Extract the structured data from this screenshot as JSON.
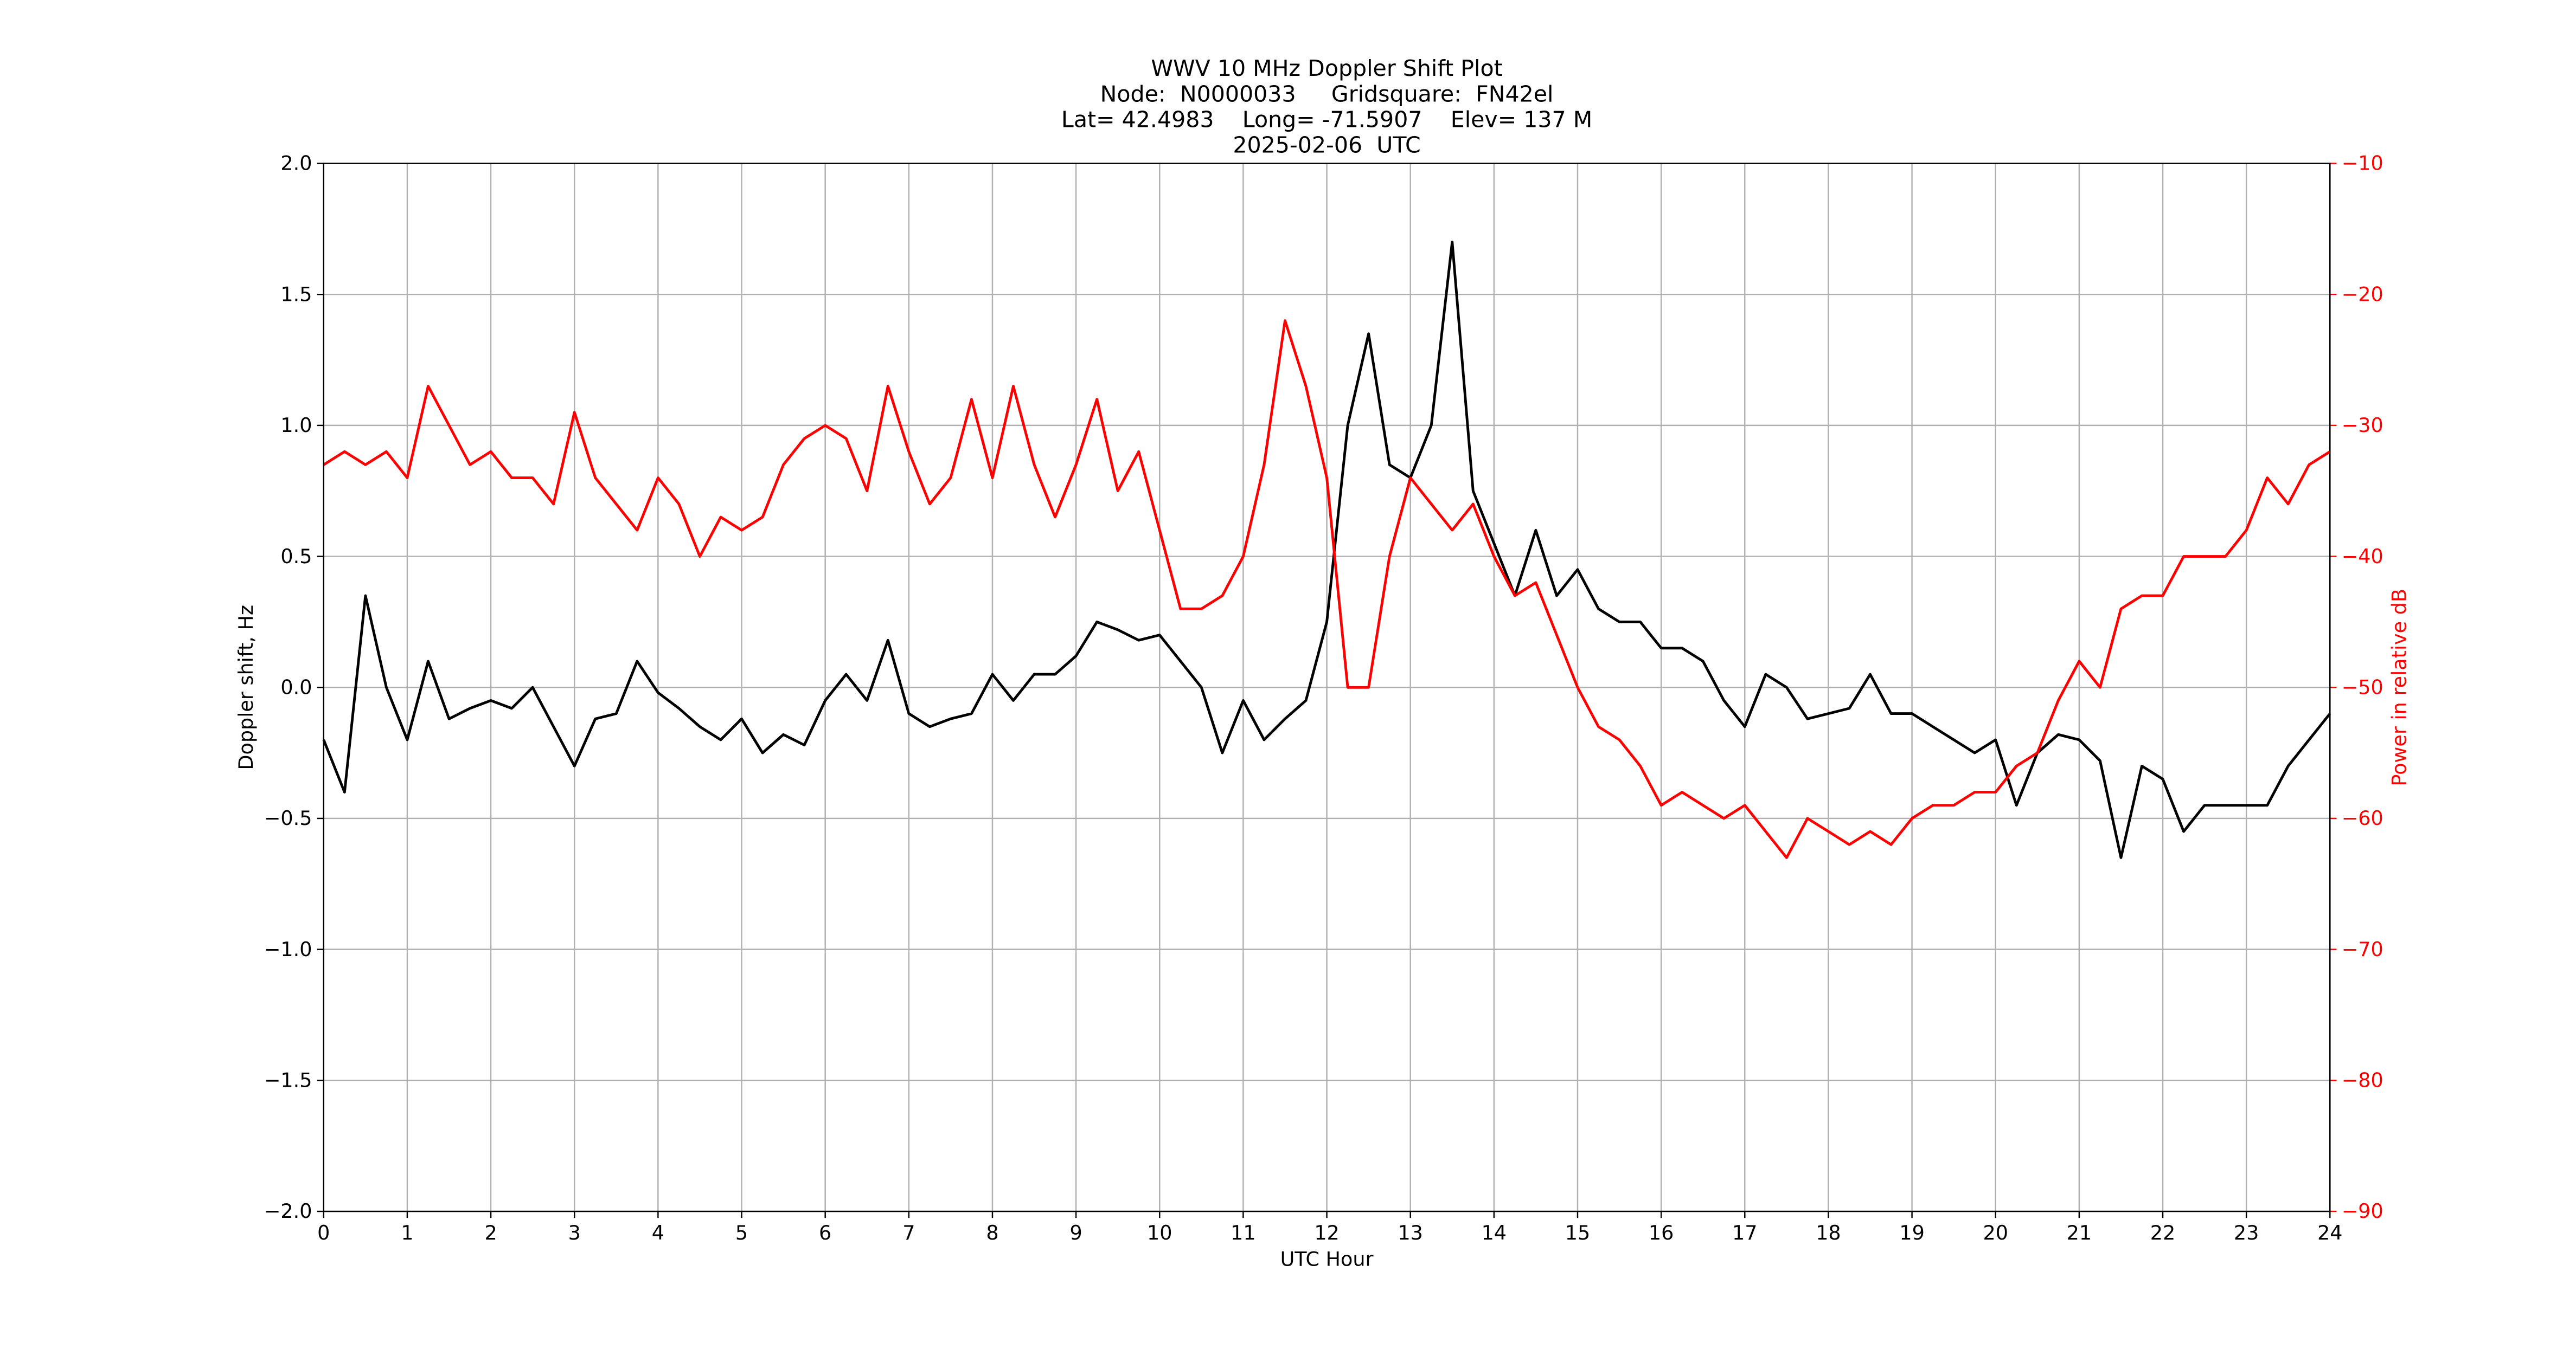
{
  "chart_data": {
    "type": "line",
    "title": [
      "WWV 10 MHz Doppler Shift Plot",
      "Node:  N0000033     Gridsquare:  FN42el",
      "Lat= 42.4983    Long= -71.5907    Elev= 137 M",
      "2025-02-06  UTC"
    ],
    "xlabel": "UTC Hour",
    "ylabel": "Doppler shift, Hz",
    "y2label": "Power in relative dB",
    "x": [
      0,
      0.25,
      0.5,
      0.75,
      1,
      1.25,
      1.5,
      1.75,
      2,
      2.25,
      2.5,
      2.75,
      3,
      3.25,
      3.5,
      3.75,
      4,
      4.25,
      4.5,
      4.75,
      5,
      5.25,
      5.5,
      5.75,
      6,
      6.25,
      6.5,
      6.75,
      7,
      7.25,
      7.5,
      7.75,
      8,
      8.25,
      8.5,
      8.75,
      9,
      9.25,
      9.5,
      9.75,
      10,
      10.25,
      10.5,
      10.75,
      11,
      11.25,
      11.5,
      11.75,
      12,
      12.25,
      12.5,
      12.75,
      13,
      13.25,
      13.5,
      13.75,
      14,
      14.25,
      14.5,
      14.75,
      15,
      15.25,
      15.5,
      15.75,
      16,
      16.25,
      16.5,
      16.75,
      17,
      17.25,
      17.5,
      17.75,
      18,
      18.25,
      18.5,
      18.75,
      19,
      19.25,
      19.5,
      19.75,
      20,
      20.25,
      20.5,
      20.75,
      21,
      21.25,
      21.5,
      21.75,
      22,
      22.25,
      22.5,
      22.75,
      23,
      23.25,
      23.5,
      23.75,
      24
    ],
    "series": [
      {
        "name": "Doppler shift",
        "color": "#000000",
        "axis": "y",
        "values": [
          -0.2,
          -0.4,
          0.35,
          0.0,
          -0.2,
          0.1,
          -0.12,
          -0.08,
          -0.05,
          -0.08,
          0.0,
          -0.15,
          -0.3,
          -0.12,
          -0.1,
          0.1,
          -0.02,
          -0.08,
          -0.15,
          -0.2,
          -0.12,
          -0.25,
          -0.18,
          -0.22,
          -0.05,
          0.05,
          -0.05,
          0.18,
          -0.1,
          -0.15,
          -0.12,
          -0.1,
          0.05,
          -0.05,
          0.05,
          0.05,
          0.12,
          0.25,
          0.22,
          0.18,
          0.2,
          0.1,
          0.0,
          -0.25,
          -0.05,
          -0.2,
          -0.12,
          -0.05,
          0.25,
          1.0,
          1.35,
          0.85,
          0.8,
          1.0,
          1.7,
          0.75,
          0.55,
          0.35,
          0.6,
          0.35,
          0.45,
          0.3,
          0.25,
          0.25,
          0.15,
          0.15,
          0.1,
          -0.05,
          -0.15,
          0.05,
          0.0,
          -0.12,
          -0.1,
          -0.08,
          0.05,
          -0.1,
          -0.1,
          -0.15,
          -0.2,
          -0.25,
          -0.2,
          -0.45,
          -0.25,
          -0.18,
          -0.2,
          -0.28,
          -0.65,
          -0.3,
          -0.35,
          -0.55,
          -0.45,
          -0.45,
          -0.45,
          -0.45,
          -0.3,
          -0.2,
          -0.1
        ]
      },
      {
        "name": "Power",
        "color": "#ff0000",
        "axis": "y2",
        "values": [
          -33,
          -32,
          -33,
          -32,
          -34,
          -27,
          -30,
          -33,
          -32,
          -34,
          -34,
          -36,
          -29,
          -34,
          -36,
          -38,
          -34,
          -36,
          -40,
          -37,
          -38,
          -37,
          -33,
          -31,
          -30,
          -31,
          -35,
          -27,
          -32,
          -36,
          -34,
          -28,
          -34,
          -27,
          -33,
          -37,
          -33,
          -28,
          -35,
          -32,
          -38,
          -44,
          -44,
          -43,
          -40,
          -33,
          -22,
          -27,
          -34,
          -50,
          -50,
          -40,
          -34,
          -36,
          -38,
          -36,
          -40,
          -43,
          -42,
          -46,
          -50,
          -53,
          -54,
          -56,
          -59,
          -58,
          -59,
          -60,
          -59,
          -61,
          -63,
          -60,
          -61,
          -62,
          -61,
          -62,
          -60,
          -59,
          -59,
          -58,
          -58,
          -56,
          -55,
          -51,
          -48,
          -50,
          -44,
          -43,
          -43,
          -40,
          -40,
          -40,
          -38,
          -34,
          -36,
          -33,
          -32
        ]
      }
    ],
    "xlim": [
      0,
      24
    ],
    "xticks": [
      0,
      1,
      2,
      3,
      4,
      5,
      6,
      7,
      8,
      9,
      10,
      11,
      12,
      13,
      14,
      15,
      16,
      17,
      18,
      19,
      20,
      21,
      22,
      23,
      24
    ],
    "ylim": [
      -2,
      2
    ],
    "yticks": [
      {
        "value": -2,
        "label": "−2.0"
      },
      {
        "value": -1.5,
        "label": "−1.5"
      },
      {
        "value": -1,
        "label": "−1.0"
      },
      {
        "value": -0.5,
        "label": "−0.5"
      },
      {
        "value": 0,
        "label": "0.0"
      },
      0.5,
      {
        "value": 1,
        "label": "1.0"
      },
      1.5,
      {
        "value": 2,
        "label": "2.0"
      }
    ],
    "y2lim": [
      -90,
      -10
    ],
    "y2ticks": [
      {
        "value": -90,
        "label": "−90"
      },
      {
        "value": -80,
        "label": "−80"
      },
      {
        "value": -70,
        "label": "−70"
      },
      {
        "value": -60,
        "label": "−60"
      },
      {
        "value": -50,
        "label": "−50"
      },
      {
        "value": -40,
        "label": "−40"
      },
      {
        "value": -30,
        "label": "−30"
      },
      {
        "value": -20,
        "label": "−20"
      },
      {
        "value": -10,
        "label": "−10"
      }
    ],
    "y2color": "#ff0000",
    "grid": true
  }
}
